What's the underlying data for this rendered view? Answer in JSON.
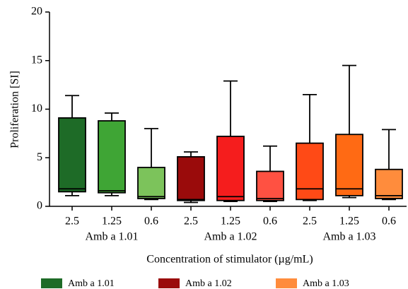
{
  "chart_data": {
    "type": "box",
    "x_label": "Concentration of stimulator (µg/mL)",
    "y_label": "Proliferation [SI]",
    "categories": [
      "2.5",
      "1.25",
      "0.6"
    ],
    "ylim": [
      0,
      20
    ],
    "yticks": [
      0,
      5,
      10,
      15,
      20
    ],
    "legend_position": "bottom",
    "series": [
      {
        "name": "Amb a 1.01",
        "color": "#1e6b27",
        "box_colors": [
          "#1e6b27",
          "#3fa535",
          "#7cc35b"
        ],
        "min": [
          1.1,
          1.1,
          0.7
        ],
        "q1": [
          1.5,
          1.4,
          0.8
        ],
        "median": [
          1.8,
          1.6,
          1.0
        ],
        "q3": [
          9.1,
          8.8,
          4.0
        ],
        "max": [
          11.4,
          9.6,
          8.0
        ]
      },
      {
        "name": "Amb a 1.02",
        "color": "#9a0b0b",
        "box_colors": [
          "#9a0b0b",
          "#f51d1d",
          "#ff5142"
        ],
        "min": [
          0.4,
          0.5,
          0.5
        ],
        "q1": [
          0.6,
          0.6,
          0.6
        ],
        "median": [
          0.7,
          1.0,
          0.8
        ],
        "q3": [
          5.1,
          7.2,
          3.6
        ],
        "max": [
          5.6,
          12.9,
          6.2
        ]
      },
      {
        "name": "Amb a 1.03",
        "color": "#ff8c3c",
        "box_colors": [
          "#ff4a16",
          "#ff6a14",
          "#ff8c3c"
        ],
        "min": [
          0.6,
          0.9,
          0.7
        ],
        "q1": [
          0.7,
          1.1,
          0.8
        ],
        "median": [
          1.8,
          1.8,
          1.1
        ],
        "q3": [
          6.5,
          7.4,
          3.8
        ],
        "max": [
          11.5,
          14.5,
          7.9
        ]
      }
    ]
  }
}
